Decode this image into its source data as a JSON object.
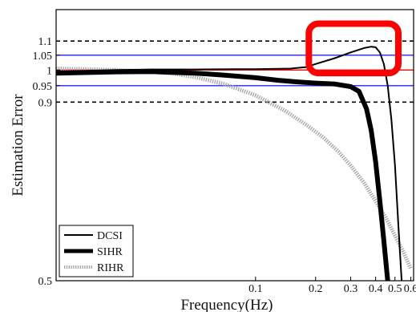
{
  "chart_data": {
    "type": "line",
    "xlabel": "Frequency(Hz)",
    "ylabel": "Estimation Error",
    "x_scale": "log",
    "y_scale": "log",
    "xlim": [
      0.01,
      0.62
    ],
    "ylim": [
      0.5,
      1.22
    ],
    "x_ticks": [
      {
        "value": 0.1,
        "label": "0.1"
      },
      {
        "value": 0.2,
        "label": "0.2"
      },
      {
        "value": 0.3,
        "label": "0.3"
      },
      {
        "value": 0.4,
        "label": "0.4"
      },
      {
        "value": 0.5,
        "label": "0.5"
      },
      {
        "value": 0.6,
        "label": "0.6"
      }
    ],
    "y_ticks": [
      {
        "value": 0.5,
        "label": "0.5"
      },
      {
        "value": 0.9,
        "label": "0.9"
      },
      {
        "value": 0.95,
        "label": "0.95"
      },
      {
        "value": 1.0,
        "label": "1"
      },
      {
        "value": 1.05,
        "label": "1.05"
      },
      {
        "value": 1.1,
        "label": "1.1"
      }
    ],
    "reference_lines": [
      {
        "y": 1.1,
        "color": "#000000",
        "style": "dashed"
      },
      {
        "y": 0.9,
        "color": "#000000",
        "style": "dashed"
      },
      {
        "y": 1.05,
        "color": "#2222ff",
        "style": "solid"
      },
      {
        "y": 0.95,
        "color": "#2222ff",
        "style": "solid"
      },
      {
        "y": 1.0,
        "color": "#ff0000",
        "style": "solid"
      }
    ],
    "series": [
      {
        "name": "DCSI",
        "style": "thin-solid",
        "color": "#000000",
        "points": [
          [
            0.01,
            0.995
          ],
          [
            0.02,
            1.0
          ],
          [
            0.03,
            1.002
          ],
          [
            0.05,
            1.002
          ],
          [
            0.08,
            1.003
          ],
          [
            0.1,
            1.003
          ],
          [
            0.15,
            1.005
          ],
          [
            0.18,
            1.01
          ],
          [
            0.2,
            1.02
          ],
          [
            0.25,
            1.04
          ],
          [
            0.3,
            1.06
          ],
          [
            0.35,
            1.075
          ],
          [
            0.38,
            1.08
          ],
          [
            0.4,
            1.078
          ],
          [
            0.42,
            1.06
          ],
          [
            0.44,
            1.02
          ],
          [
            0.46,
            0.95
          ],
          [
            0.48,
            0.85
          ],
          [
            0.5,
            0.73
          ],
          [
            0.52,
            0.6
          ],
          [
            0.54,
            0.5
          ]
        ]
      },
      {
        "name": "SIHR",
        "style": "thick-solid",
        "color": "#000000",
        "points": [
          [
            0.01,
            0.99
          ],
          [
            0.02,
            0.994
          ],
          [
            0.03,
            0.995
          ],
          [
            0.05,
            0.99
          ],
          [
            0.07,
            0.983
          ],
          [
            0.1,
            0.975
          ],
          [
            0.13,
            0.967
          ],
          [
            0.16,
            0.962
          ],
          [
            0.2,
            0.958
          ],
          [
            0.25,
            0.955
          ],
          [
            0.3,
            0.947
          ],
          [
            0.33,
            0.932
          ],
          [
            0.36,
            0.88
          ],
          [
            0.38,
            0.82
          ],
          [
            0.4,
            0.74
          ],
          [
            0.42,
            0.65
          ],
          [
            0.44,
            0.57
          ],
          [
            0.46,
            0.5
          ]
        ]
      },
      {
        "name": "RIHR",
        "style": "dotted-gray",
        "color": "#a8a8a8",
        "points": [
          [
            0.01,
            1.005
          ],
          [
            0.02,
            1.0
          ],
          [
            0.03,
            0.995
          ],
          [
            0.04,
            0.987
          ],
          [
            0.05,
            0.977
          ],
          [
            0.07,
            0.955
          ],
          [
            0.1,
            0.92
          ],
          [
            0.14,
            0.875
          ],
          [
            0.18,
            0.835
          ],
          [
            0.22,
            0.8
          ],
          [
            0.26,
            0.765
          ],
          [
            0.3,
            0.73
          ],
          [
            0.35,
            0.69
          ],
          [
            0.4,
            0.65
          ],
          [
            0.45,
            0.615
          ],
          [
            0.5,
            0.58
          ],
          [
            0.55,
            0.55
          ],
          [
            0.6,
            0.52
          ]
        ]
      }
    ],
    "annotation": {
      "type": "rounded-rectangle",
      "color": "#ff0000",
      "x_range": [
        0.185,
        0.52
      ],
      "y_range": [
        0.99,
        1.165
      ]
    },
    "legend": {
      "position": "bottom-left"
    }
  }
}
